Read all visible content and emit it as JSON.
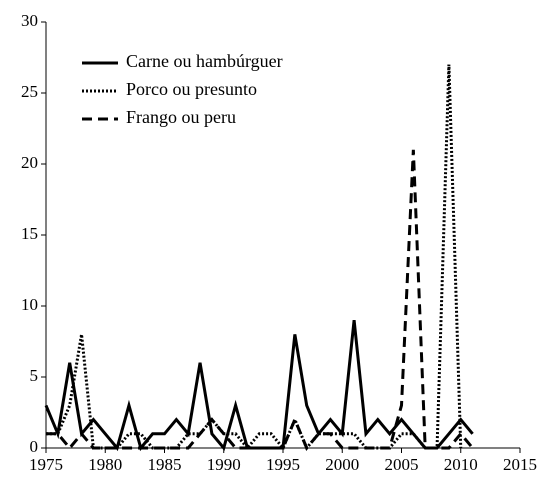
{
  "chart_data": {
    "type": "line",
    "x": [
      1975,
      1976,
      1977,
      1978,
      1979,
      1980,
      1981,
      1982,
      1983,
      1984,
      1985,
      1986,
      1987,
      1988,
      1989,
      1990,
      1991,
      1992,
      1993,
      1994,
      1995,
      1996,
      1997,
      1998,
      1999,
      2000,
      2001,
      2002,
      2003,
      2004,
      2005,
      2006,
      2007,
      2008,
      2009,
      2010,
      2011
    ],
    "series": [
      {
        "name": "Carne ou hambúrguer",
        "color": "#000000",
        "dash": "solid",
        "values": [
          3,
          1,
          6,
          1,
          2,
          1,
          0,
          3,
          0,
          1,
          1,
          2,
          1,
          6,
          1,
          0,
          3,
          0,
          0,
          0,
          0,
          8,
          3,
          1,
          2,
          1,
          9,
          1,
          2,
          1,
          2,
          1,
          0,
          0,
          1,
          2,
          1
        ]
      },
      {
        "name": "Porco ou presunto",
        "color": "#000000",
        "dash": "dotted",
        "values": [
          1,
          1,
          3,
          8,
          0,
          0,
          0,
          1,
          1,
          0,
          0,
          0,
          1,
          1,
          2,
          1,
          1,
          0,
          1,
          1,
          0,
          2,
          0,
          1,
          1,
          1,
          1,
          0,
          0,
          0,
          1,
          1,
          0,
          0,
          27,
          0,
          null
        ]
      },
      {
        "name": "Frango ou peru",
        "color": "#000000",
        "dash": "dashed",
        "values": [
          1,
          1,
          0,
          1,
          0,
          0,
          0,
          0,
          0,
          0,
          0,
          0,
          0,
          1,
          2,
          1,
          0,
          0,
          0,
          0,
          0,
          2,
          0,
          1,
          1,
          0,
          0,
          0,
          0,
          0,
          3,
          21,
          0,
          0,
          0,
          1,
          0
        ]
      }
    ],
    "xlim": [
      1975,
      2015
    ],
    "xticks": [
      1975,
      1980,
      1985,
      1990,
      1995,
      2000,
      2005,
      2010,
      2015
    ],
    "ylim": [
      0,
      30
    ],
    "yticks": [
      0,
      5,
      10,
      15,
      20,
      25,
      30
    ],
    "legend": "top-left"
  }
}
